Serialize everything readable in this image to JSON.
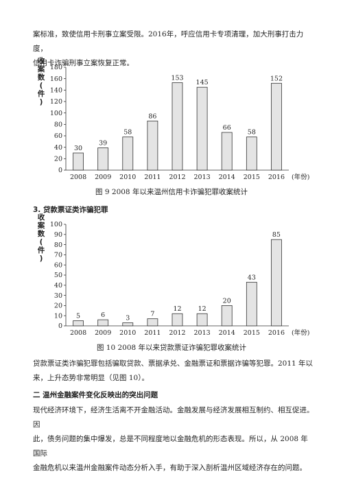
{
  "intro_paragraph": {
    "lines": [
      "案标准，致使信用卡刑事立案受限。2016年，呼应信用卡专项清理，加大刑事打击力度，",
      "信用卡诈骗刑事立案恢复正常。"
    ]
  },
  "chart_data": [
    {
      "type": "bar",
      "categories": [
        "2008",
        "2009",
        "2010",
        "2011",
        "2012",
        "2013",
        "2014",
        "2015",
        "2016"
      ],
      "values": [
        30,
        39,
        58,
        86,
        153,
        145,
        66,
        58,
        152
      ],
      "title": "图 9  2008 年以来温州信用卡诈骗犯罪收案统计",
      "ylabel_lines": [
        "收",
        "案",
        "数",
        "(",
        "件",
        ")"
      ],
      "xlabel": "(年份)",
      "ylim": [
        0,
        180
      ],
      "yticks": [
        "0",
        "20",
        "40",
        "60",
        "80",
        "100",
        "120",
        "140",
        "160",
        "180"
      ],
      "data_labels": [
        "30",
        "39",
        "58",
        "86",
        "153",
        "145",
        "66",
        "58",
        "152"
      ],
      "grid": false
    },
    {
      "type": "bar",
      "categories": [
        "2008",
        "2009",
        "2010",
        "2011",
        "2012",
        "2013",
        "2014",
        "2015",
        "2016"
      ],
      "values": [
        5,
        6,
        3,
        7,
        12,
        12,
        20,
        43,
        85
      ],
      "title": "图 10  2008 年以来贷款票证诈骗犯罪收案统计",
      "ylabel_lines": [
        "收",
        "案",
        "数",
        "(",
        "件",
        ")"
      ],
      "xlabel": "(年份)",
      "ylim": [
        0,
        100
      ],
      "yticks": [
        "0",
        "10",
        "20",
        "30",
        "40",
        "50",
        "60",
        "70",
        "80",
        "90",
        "100"
      ],
      "data_labels": [
        "5",
        "6",
        "3",
        "7",
        "12",
        "12",
        "20",
        "43",
        "85"
      ],
      "grid": false
    }
  ],
  "section3_heading": "3. 贷款票证类诈骗犯罪",
  "loan_paragraph": {
    "lines": [
      "贷款票证类诈骗犯罪包括骗取贷款、票据承兑、金融票证和票据诈骗等犯罪。2011 年以",
      "来，上升态势非常明显（见图 10）。"
    ]
  },
  "section2_heading": "二  温州金融案件变化反映出的突出问题",
  "closing_paragraph": {
    "lines": [
      "现代经济环境下，经济生活离不开金融活动。金融发展与经济发展相互制约、相互促进。因",
      "此，债务问题的集中爆发，总是不同程度地以金融危机的形态表现。所以，从 2008 年国际",
      "金融危机以来温州金融案件动态分析入手，有助于深入剖析温州区域经济存在的问题。"
    ]
  }
}
